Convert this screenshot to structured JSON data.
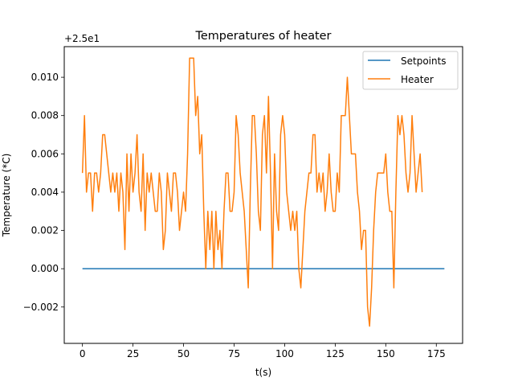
{
  "chart_data": {
    "type": "line",
    "title": "Temperatures of heater",
    "xlabel": "t(s)",
    "ylabel": "Temperature (*C)",
    "y_offset_label": "+2.5e1",
    "y_offset": 25,
    "xlim": [
      -9,
      188
    ],
    "ylim": [
      -0.0039,
      0.0116
    ],
    "x_ticks": [
      0,
      25,
      50,
      75,
      100,
      125,
      150,
      175
    ],
    "x_tick_labels": [
      "0",
      "25",
      "50",
      "75",
      "100",
      "125",
      "150",
      "175"
    ],
    "y_ticks": [
      -0.002,
      0.0,
      0.002,
      0.004,
      0.006,
      0.008,
      0.01
    ],
    "y_tick_labels": [
      "−0.002",
      "0.000",
      "0.002",
      "0.004",
      "0.006",
      "0.008",
      "0.010"
    ],
    "grid": false,
    "legend_position": "top-right",
    "x_start": 0,
    "x_step": 1,
    "series": [
      {
        "name": "Setpoints",
        "color": "#1f77b4",
        "values": [
          0,
          0,
          0,
          0,
          0,
          0,
          0,
          0,
          0,
          0,
          0,
          0,
          0,
          0,
          0,
          0,
          0,
          0,
          0,
          0,
          0,
          0,
          0,
          0,
          0,
          0,
          0,
          0,
          0,
          0,
          0,
          0,
          0,
          0,
          0,
          0,
          0,
          0,
          0,
          0,
          0,
          0,
          0,
          0,
          0,
          0,
          0,
          0,
          0,
          0,
          0,
          0,
          0,
          0,
          0,
          0,
          0,
          0,
          0,
          0,
          0,
          0,
          0,
          0,
          0,
          0,
          0,
          0,
          0,
          0,
          0,
          0,
          0,
          0,
          0,
          0,
          0,
          0,
          0,
          0,
          0,
          0,
          0,
          0,
          0,
          0,
          0,
          0,
          0,
          0,
          0,
          0,
          0,
          0,
          0,
          0,
          0,
          0,
          0,
          0,
          0,
          0,
          0,
          0,
          0,
          0,
          0,
          0,
          0,
          0,
          0,
          0,
          0,
          0,
          0,
          0,
          0,
          0,
          0,
          0,
          0,
          0,
          0,
          0,
          0,
          0,
          0,
          0,
          0,
          0,
          0,
          0,
          0,
          0,
          0,
          0,
          0,
          0,
          0,
          0,
          0,
          0,
          0,
          0,
          0,
          0,
          0,
          0,
          0,
          0,
          0,
          0,
          0,
          0,
          0,
          0,
          0,
          0,
          0,
          0,
          0,
          0,
          0,
          0,
          0,
          0,
          0,
          0,
          0,
          0,
          0,
          0,
          0,
          0,
          0,
          0,
          0,
          0,
          0,
          0
        ]
      },
      {
        "name": "Heater",
        "color": "#ff7f0e",
        "values": [
          0.005,
          0.008,
          0.004,
          0.005,
          0.005,
          0.003,
          0.005,
          0.005,
          0.004,
          0.005,
          0.007,
          0.007,
          0.006,
          0.005,
          0.004,
          0.005,
          0.004,
          0.005,
          0.003,
          0.005,
          0.004,
          0.001,
          0.006,
          0.003,
          0.006,
          0.004,
          0.005,
          0.007,
          0.004,
          0.003,
          0.006,
          0.002,
          0.005,
          0.004,
          0.005,
          0.004,
          0.003,
          0.003,
          0.005,
          0.004,
          0.001,
          0.002,
          0.005,
          0.004,
          0.003,
          0.005,
          0.005,
          0.004,
          0.002,
          0.003,
          0.004,
          0.003,
          0.006,
          0.011,
          0.011,
          0.011,
          0.008,
          0.009,
          0.006,
          0.007,
          0.003,
          0.0,
          0.003,
          0.001,
          0.003,
          0.0,
          0.003,
          0.001,
          0.002,
          0.0,
          0.003,
          0.005,
          0.005,
          0.003,
          0.003,
          0.004,
          0.008,
          0.007,
          0.005,
          0.004,
          0.003,
          0.001,
          -0.001,
          0.004,
          0.008,
          0.008,
          0.006,
          0.003,
          0.002,
          0.007,
          0.008,
          0.005,
          0.009,
          0.005,
          0.0,
          0.006,
          0.003,
          0.002,
          0.007,
          0.008,
          0.007,
          0.004,
          0.003,
          0.002,
          0.003,
          0.002,
          0.003,
          0.0,
          -0.001,
          0.001,
          0.003,
          0.004,
          0.005,
          0.005,
          0.007,
          0.007,
          0.004,
          0.005,
          0.004,
          0.005,
          0.003,
          0.004,
          0.006,
          0.004,
          0.003,
          0.003,
          0.005,
          0.004,
          0.008,
          0.008,
          0.008,
          0.01,
          0.008,
          0.006,
          0.006,
          0.006,
          0.004,
          0.003,
          0.001,
          0.002,
          0.002,
          -0.002,
          -0.003,
          -0.001,
          0.002,
          0.004,
          0.005,
          0.005,
          0.005,
          0.005,
          0.006,
          0.004,
          0.003,
          0.003,
          -0.001,
          0.004,
          0.008,
          0.007,
          0.008,
          0.007,
          0.005,
          0.004,
          0.005,
          0.008,
          0.006,
          0.004,
          0.005,
          0.006,
          0.004
        ]
      }
    ]
  }
}
